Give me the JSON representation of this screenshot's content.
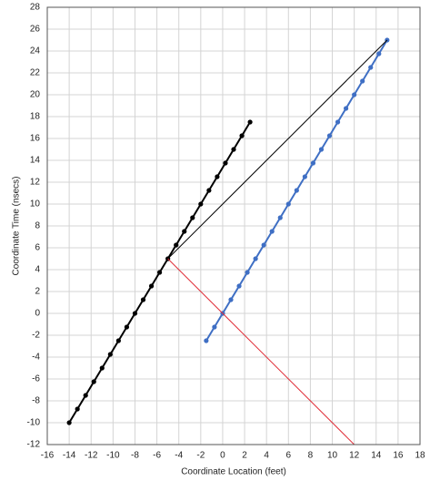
{
  "chart_data": {
    "type": "line",
    "x_label": "Coordinate Location (feet)",
    "y_label": "Coordinate Time (nsecs)",
    "xlim": [
      -16,
      18
    ],
    "ylim": [
      -12,
      28
    ],
    "xticks": [
      -16,
      -14,
      -12,
      -10,
      -8,
      -6,
      -4,
      -2,
      0,
      2,
      4,
      6,
      8,
      10,
      12,
      14,
      16,
      18
    ],
    "yticks": [
      -12,
      -10,
      -8,
      -6,
      -4,
      -2,
      0,
      2,
      4,
      6,
      8,
      10,
      12,
      14,
      16,
      18,
      20,
      22,
      24,
      26,
      28
    ],
    "grid": true,
    "series": [
      {
        "color": "#000000",
        "markers": true,
        "width": 2,
        "x": [
          -14,
          -13.25,
          -12.5,
          -11.75,
          -11,
          -10.25,
          -9.5,
          -8.75,
          -8,
          -7.25,
          -6.5,
          -5.75,
          -5,
          -4.25,
          -3.5,
          -2.75,
          -2,
          -1.25,
          -0.5,
          0.25,
          1,
          1.75,
          2.5
        ],
        "values": [
          -10,
          -8.75,
          -7.5,
          -6.25,
          -5,
          -3.75,
          -2.5,
          -1.25,
          0,
          1.25,
          2.5,
          3.75,
          5,
          6.25,
          7.5,
          8.75,
          10,
          11.25,
          12.5,
          13.75,
          15,
          16.25,
          17.5
        ]
      },
      {
        "color": "#3f6fc4",
        "markers": true,
        "width": 2,
        "x": [
          -1.5,
          -0.75,
          0,
          0.75,
          1.5,
          2.25,
          3,
          3.75,
          4.5,
          5.25,
          6,
          6.75,
          7.5,
          8.25,
          9,
          9.75,
          10.5,
          11.25,
          12,
          12.75,
          13.5,
          14.25,
          15
        ],
        "values": [
          -2.5,
          -1.25,
          0,
          1.25,
          2.5,
          3.75,
          5,
          6.25,
          7.5,
          8.75,
          10,
          11.25,
          12.5,
          13.75,
          15,
          16.25,
          17.5,
          18.75,
          20,
          21.25,
          22.5,
          23.75,
          25
        ]
      },
      {
        "color": "#000000",
        "markers": false,
        "width": 1,
        "x": [
          -5,
          15
        ],
        "values": [
          5,
          25
        ]
      },
      {
        "color": "#e0303a",
        "markers": false,
        "width": 1,
        "x": [
          -5,
          12
        ],
        "values": [
          5,
          -12
        ]
      }
    ]
  }
}
